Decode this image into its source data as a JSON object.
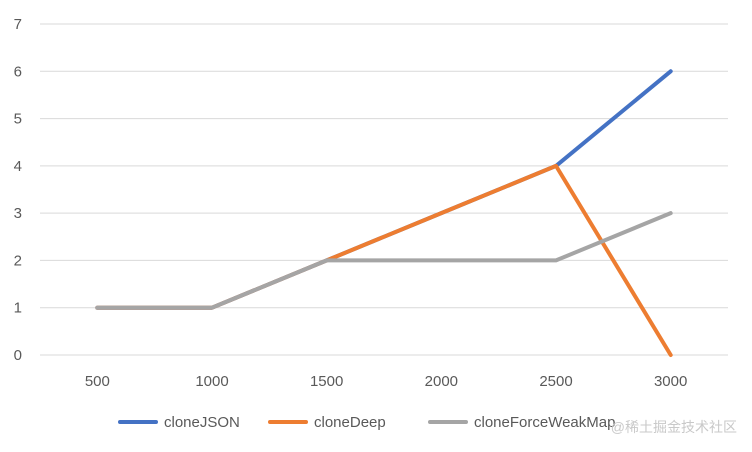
{
  "chart_data": {
    "type": "line",
    "categories": [
      "500",
      "1000",
      "1500",
      "2000",
      "2500",
      "3000"
    ],
    "ylim": [
      0,
      7
    ],
    "yticks": [
      0,
      1,
      2,
      3,
      4,
      5,
      6,
      7
    ],
    "grid": true,
    "legend_position": "bottom",
    "series": [
      {
        "name": "cloneJSON",
        "color": "#4472C4",
        "values": [
          1,
          1,
          2,
          3,
          4,
          6
        ]
      },
      {
        "name": "cloneDeep",
        "color": "#ED7D31",
        "values": [
          1,
          1,
          2,
          3,
          4,
          0
        ]
      },
      {
        "name": "cloneForceWeakMap",
        "color": "#A5A5A5",
        "values": [
          1,
          1,
          2,
          2,
          2,
          3
        ]
      }
    ]
  },
  "watermark": "@稀土掘金技术社区"
}
